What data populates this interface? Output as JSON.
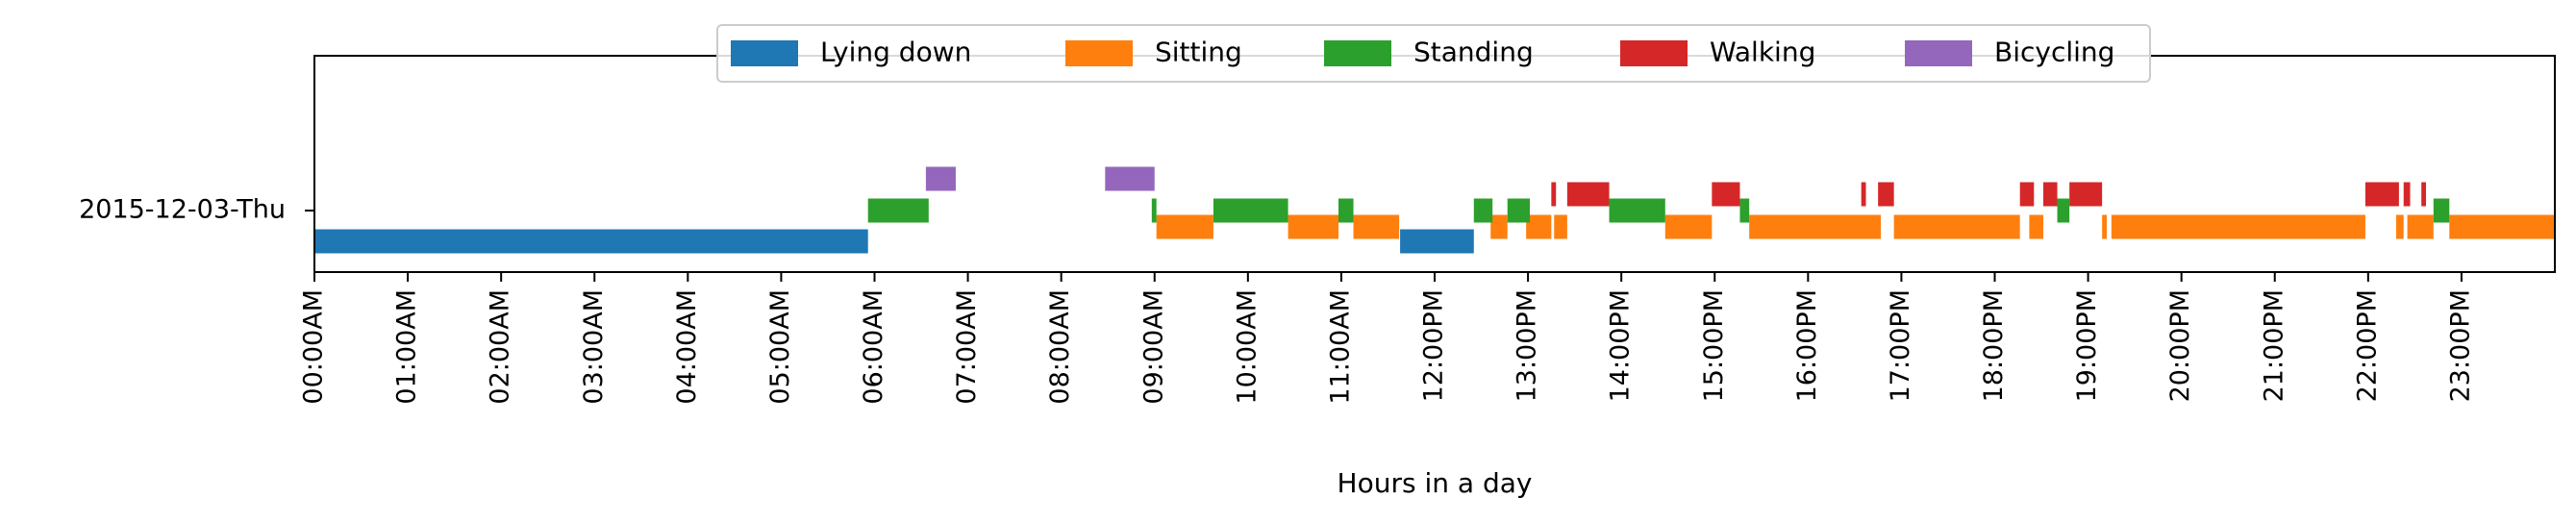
{
  "chart_data": {
    "type": "timeline",
    "title": "",
    "xlabel": "Hours in a day",
    "ylabel": "",
    "x_unit": "hours",
    "xlim": [
      0,
      24
    ],
    "grid": false,
    "legend_position": "top-center",
    "row_label": "2015-12-03-Thu",
    "x_tick_labels": [
      "00:00AM",
      "01:00AM",
      "02:00AM",
      "03:00AM",
      "04:00AM",
      "05:00AM",
      "06:00AM",
      "07:00AM",
      "08:00AM",
      "09:00AM",
      "10:00AM",
      "11:00AM",
      "12:00PM",
      "13:00PM",
      "14:00PM",
      "15:00PM",
      "16:00PM",
      "17:00PM",
      "18:00PM",
      "19:00PM",
      "20:00PM",
      "21:00PM",
      "22:00PM",
      "23:00PM"
    ],
    "series": [
      {
        "name": "Lying down",
        "color": "#1f77b4",
        "lane": 0,
        "segments": [
          [
            0.0,
            5.93
          ],
          [
            11.63,
            12.42
          ]
        ]
      },
      {
        "name": "Sitting",
        "color": "#ff7f0e",
        "lane": 1,
        "segments": [
          [
            9.02,
            9.63
          ],
          [
            10.43,
            10.97
          ],
          [
            11.13,
            11.62
          ],
          [
            12.6,
            12.78
          ],
          [
            12.98,
            13.25
          ],
          [
            13.28,
            13.42
          ],
          [
            14.47,
            14.97
          ],
          [
            15.37,
            16.78
          ],
          [
            16.92,
            18.27
          ],
          [
            18.37,
            18.52
          ],
          [
            19.15,
            19.2
          ],
          [
            19.25,
            21.97
          ],
          [
            22.3,
            22.38
          ],
          [
            22.42,
            22.7
          ],
          [
            22.87,
            24.0
          ]
        ]
      },
      {
        "name": "Standing",
        "color": "#2ca02c",
        "lane": 2,
        "segments": [
          [
            5.93,
            6.58
          ],
          [
            8.97,
            9.02
          ],
          [
            9.63,
            10.43
          ],
          [
            10.97,
            11.13
          ],
          [
            12.42,
            12.62
          ],
          [
            12.78,
            13.02
          ],
          [
            13.87,
            14.47
          ],
          [
            15.27,
            15.37
          ],
          [
            18.67,
            18.8
          ],
          [
            22.7,
            22.87
          ]
        ]
      },
      {
        "name": "Walking",
        "color": "#d62728",
        "lane": 3,
        "segments": [
          [
            13.25,
            13.3
          ],
          [
            13.42,
            13.87
          ],
          [
            14.97,
            15.27
          ],
          [
            16.57,
            16.62
          ],
          [
            16.75,
            16.92
          ],
          [
            18.27,
            18.42
          ],
          [
            18.52,
            18.67
          ],
          [
            18.8,
            19.15
          ],
          [
            21.97,
            22.33
          ],
          [
            22.38,
            22.45
          ],
          [
            22.57,
            22.62
          ]
        ]
      },
      {
        "name": "Bicycling",
        "color": "#9467bd",
        "lane": 4,
        "segments": [
          [
            6.55,
            6.87
          ],
          [
            8.47,
            9.0
          ]
        ]
      }
    ]
  }
}
